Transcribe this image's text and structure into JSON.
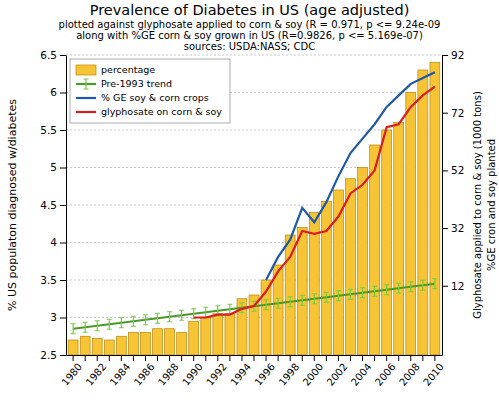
{
  "chart_data": {
    "type": "bar",
    "title": "Prevalence of Diabetes in US (age adjusted)",
    "subtitle": [
      "plotted against glyphosate applied to corn & soy (R = 0.971, p <= 9.24e-09",
      "along with %GE corn & soy grown in US (R=0.9826, p <= 5.169e-07)",
      "sources: USDA:NASS; CDC"
    ],
    "y_label": "% US populaton diagnosed w/diabetes",
    "y2_label": [
      "Glyphosate applied to corn & soy (1000 tons)",
      "%GE cron and soy planted"
    ],
    "categories": [
      "1980",
      null,
      "1982",
      null,
      "1984",
      null,
      "1986",
      null,
      "1988",
      null,
      "1990",
      null,
      "1992",
      null,
      "1994",
      null,
      "1996",
      null,
      "1998",
      null,
      "2000",
      null,
      "2002",
      null,
      "2004",
      null,
      "2006",
      null,
      "2008",
      null,
      "2010"
    ],
    "series": [
      {
        "name": "percentage",
        "type": "bar",
        "color": "#f7c436",
        "values": [
          2.7,
          2.75,
          2.72,
          2.7,
          2.75,
          2.8,
          2.8,
          2.85,
          2.85,
          2.8,
          2.95,
          3.0,
          3.05,
          3.05,
          3.25,
          3.3,
          3.5,
          3.7,
          4.1,
          4.2,
          4.4,
          4.55,
          4.7,
          4.85,
          5.0,
          5.3,
          5.5,
          5.6,
          6.0,
          6.3,
          6.4
        ]
      },
      {
        "name": "Pre-1993 trend",
        "type": "line",
        "color": "#4a9a2a",
        "marker": "tick",
        "values": [
          2.85,
          2.87,
          2.89,
          2.91,
          2.93,
          2.95,
          2.97,
          2.99,
          3.01,
          3.03,
          3.05,
          3.07,
          3.09,
          3.11,
          3.13,
          3.15,
          3.17,
          3.19,
          3.21,
          3.23,
          3.25,
          3.27,
          3.29,
          3.31,
          3.33,
          3.35,
          3.37,
          3.39,
          3.41,
          3.43,
          3.45
        ]
      },
      {
        "name": "% GE soy & corn crops",
        "type": "line",
        "color": "#1f5aa6",
        "axis": "y2",
        "values": [
          null,
          null,
          null,
          null,
          null,
          null,
          null,
          null,
          null,
          null,
          null,
          null,
          null,
          null,
          null,
          null,
          14,
          22,
          28,
          39,
          34,
          41,
          50,
          58,
          63,
          68,
          74,
          78,
          82,
          84,
          86
        ]
      },
      {
        "name": "glyphosate on corn & soy",
        "type": "line",
        "color": "#d62020",
        "axis": "y2",
        "values": [
          null,
          null,
          null,
          null,
          null,
          null,
          null,
          null,
          null,
          null,
          1,
          1,
          2,
          2,
          4,
          5,
          10,
          17,
          22,
          31,
          30,
          31,
          36,
          44,
          47,
          52,
          67,
          68,
          74,
          78,
          81
        ]
      }
    ],
    "ylim": [
      2.5,
      6.5
    ],
    "yticks": [
      2.5,
      3,
      3.5,
      4,
      4.5,
      5,
      5.5,
      6,
      6.5
    ],
    "y2lim": [
      -12,
      92
    ],
    "y2ticks": [
      12,
      32,
      52,
      72,
      92
    ],
    "grid": true,
    "legend": "upper left"
  }
}
